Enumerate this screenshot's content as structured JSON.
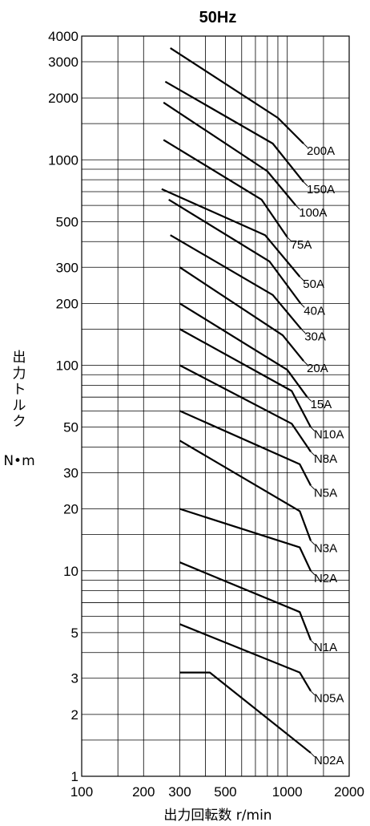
{
  "chart_data": {
    "type": "line",
    "title": "50Hz",
    "xlabel": "出力回転数 r/min",
    "ylabel": [
      "出",
      "力",
      "ト",
      "ル",
      "ク"
    ],
    "yunit": "N•m",
    "x_scale": "log",
    "y_scale": "log",
    "xlim": [
      100,
      2000
    ],
    "ylim": [
      1,
      4000
    ],
    "grid": true,
    "x_ticks": [
      {
        "value": 100,
        "label": "100"
      },
      {
        "value": 200,
        "label": "200"
      },
      {
        "value": 300,
        "label": "300"
      },
      {
        "value": 500,
        "label": "500"
      },
      {
        "value": 1000,
        "label": "1000"
      },
      {
        "value": 2000,
        "label": "2000"
      }
    ],
    "y_ticks": [
      {
        "value": 1,
        "label": "1"
      },
      {
        "value": 2,
        "label": "2"
      },
      {
        "value": 3,
        "label": "3"
      },
      {
        "value": 5,
        "label": "5"
      },
      {
        "value": 10,
        "label": "10"
      },
      {
        "value": 20,
        "label": "20"
      },
      {
        "value": 30,
        "label": "30"
      },
      {
        "value": 50,
        "label": "50"
      },
      {
        "value": 100,
        "label": "100"
      },
      {
        "value": 200,
        "label": "200"
      },
      {
        "value": 300,
        "label": "300"
      },
      {
        "value": 500,
        "label": "500"
      },
      {
        "value": 1000,
        "label": "1000"
      },
      {
        "value": 2000,
        "label": "2000"
      },
      {
        "value": 3000,
        "label": "3000"
      },
      {
        "value": 4000,
        "label": "4000"
      }
    ],
    "series": [
      {
        "name": "200A",
        "x": [
          270,
          900,
          1200
        ],
        "y": [
          3500,
          1600,
          1200
        ]
      },
      {
        "name": "150A",
        "x": [
          255,
          850,
          1200
        ],
        "y": [
          2400,
          1200,
          780
        ]
      },
      {
        "name": "100A",
        "x": [
          250,
          800,
          1100
        ],
        "y": [
          1900,
          880,
          600
        ]
      },
      {
        "name": "75A",
        "x": [
          250,
          750,
          1000
        ],
        "y": [
          1250,
          640,
          420
        ]
      },
      {
        "name": "50A",
        "x": [
          245,
          780,
          1150
        ],
        "y": [
          720,
          430,
          270
        ]
      },
      {
        "name": "40A",
        "x": [
          265,
          820,
          1160
        ],
        "y": [
          640,
          320,
          200
        ]
      },
      {
        "name": "30A",
        "x": [
          270,
          850,
          1170
        ],
        "y": [
          430,
          220,
          150
        ]
      },
      {
        "name": "20A",
        "x": [
          300,
          950,
          1200
        ],
        "y": [
          300,
          140,
          105
        ]
      },
      {
        "name": "15A",
        "x": [
          300,
          1000,
          1250
        ],
        "y": [
          200,
          95,
          70
        ]
      },
      {
        "name": "N10A",
        "x": [
          300,
          1050,
          1300
        ],
        "y": [
          150,
          75,
          50
        ]
      },
      {
        "name": "N8A",
        "x": [
          300,
          1050,
          1300
        ],
        "y": [
          100,
          52,
          38
        ]
      },
      {
        "name": "N5A",
        "x": [
          300,
          1150,
          1300
        ],
        "y": [
          60,
          33,
          26
        ]
      },
      {
        "name": "N3A",
        "x": [
          300,
          1150,
          1300
        ],
        "y": [
          43,
          19.5,
          14
        ]
      },
      {
        "name": "N2A",
        "x": [
          300,
          1150,
          1300
        ],
        "y": [
          20,
          13,
          10
        ]
      },
      {
        "name": "N1A",
        "x": [
          300,
          1150,
          1300
        ],
        "y": [
          11,
          6.3,
          4.6
        ]
      },
      {
        "name": "N05A",
        "x": [
          300,
          1150,
          1300
        ],
        "y": [
          5.5,
          3.2,
          2.6
        ]
      },
      {
        "name": "N02A",
        "x": [
          300,
          420,
          1300
        ],
        "y": [
          3.2,
          3.2,
          1.3
        ]
      }
    ]
  }
}
